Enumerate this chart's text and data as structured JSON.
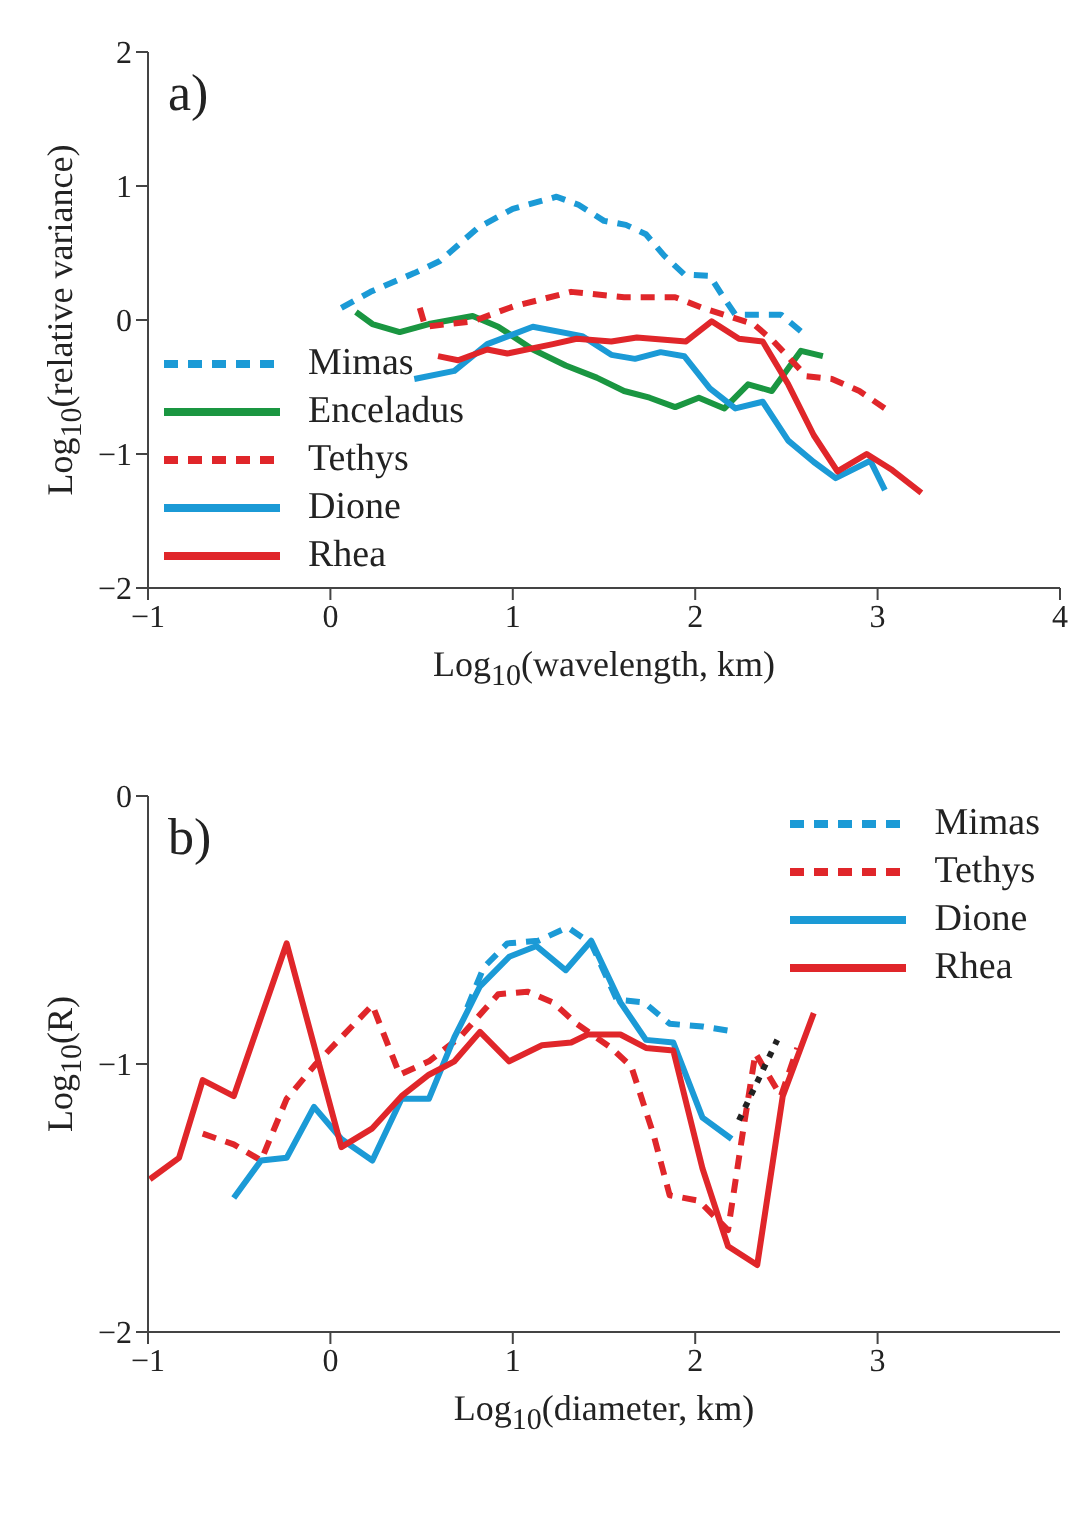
{
  "chart_data": [
    {
      "type": "line",
      "xlabel": "Log$_{10}$(wavelength, km)",
      "ylabel": "Log$_{10}$(relative variance)",
      "annotations": [
        "a)"
      ],
      "xlim": [
        -1,
        4
      ],
      "ylim": [
        -2,
        2
      ],
      "xticks": [
        -1,
        0,
        1,
        2,
        3,
        4
      ],
      "yticks": [
        -2,
        -1,
        0,
        1,
        2
      ],
      "legend": "bottom left",
      "series": [
        {
          "name": "Mimas",
          "color": "#1b9ad6",
          "line_style": "dashed",
          "x": [
            0.06,
            0.22,
            0.46,
            0.6,
            0.81,
            1.0,
            1.24,
            1.36,
            1.5,
            1.62,
            1.73,
            1.83,
            1.94,
            2.08,
            2.15,
            2.22,
            2.33,
            2.47,
            2.61
          ],
          "values": [
            0.09,
            0.21,
            0.35,
            0.44,
            0.69,
            0.83,
            0.92,
            0.86,
            0.74,
            0.71,
            0.64,
            0.48,
            0.34,
            0.33,
            0.18,
            0.04,
            0.04,
            0.04,
            -0.12
          ]
        },
        {
          "name": "Enceladus",
          "color": "#1a9641",
          "line_style": "solid",
          "x": [
            0.14,
            0.23,
            0.38,
            0.54,
            0.78,
            0.92,
            1.11,
            1.29,
            1.46,
            1.61,
            1.75,
            1.89,
            2.02,
            2.16,
            2.29,
            2.42,
            2.58,
            2.7
          ],
          "values": [
            0.06,
            -0.03,
            -0.09,
            -0.03,
            0.03,
            -0.05,
            -0.22,
            -0.34,
            -0.43,
            -0.53,
            -0.58,
            -0.65,
            -0.58,
            -0.66,
            -0.48,
            -0.53,
            -0.23,
            -0.27
          ]
        },
        {
          "name": "Tethys",
          "color": "#e0262a",
          "line_style": "dashed",
          "x": [
            0.49,
            0.52,
            0.78,
            1.0,
            1.32,
            1.61,
            1.89,
            2.04,
            2.18,
            2.32,
            2.43,
            2.61,
            2.75,
            2.9,
            3.04
          ],
          "values": [
            0.09,
            -0.05,
            -0.01,
            0.1,
            0.21,
            0.17,
            0.17,
            0.09,
            0.03,
            -0.03,
            -0.16,
            -0.42,
            -0.44,
            -0.53,
            -0.66
          ]
        },
        {
          "name": "Dione",
          "color": "#1b9ad6",
          "line_style": "solid",
          "x": [
            0.46,
            0.68,
            0.86,
            1.11,
            1.38,
            1.54,
            1.67,
            1.81,
            1.94,
            2.08,
            2.22,
            2.37,
            2.51,
            2.65,
            2.77,
            2.96,
            3.04
          ],
          "values": [
            -0.44,
            -0.38,
            -0.18,
            -0.05,
            -0.12,
            -0.26,
            -0.29,
            -0.24,
            -0.27,
            -0.51,
            -0.66,
            -0.61,
            -0.9,
            -1.06,
            -1.18,
            -1.05,
            -1.27
          ]
        },
        {
          "name": "Rhea",
          "color": "#e0262a",
          "line_style": "solid",
          "x": [
            0.59,
            0.7,
            0.86,
            0.97,
            1.22,
            1.35,
            1.54,
            1.68,
            1.95,
            2.09,
            2.24,
            2.37,
            2.51,
            2.65,
            2.78,
            2.94,
            3.08,
            3.24
          ],
          "values": [
            -0.27,
            -0.3,
            -0.22,
            -0.25,
            -0.18,
            -0.14,
            -0.16,
            -0.13,
            -0.16,
            -0.01,
            -0.14,
            -0.16,
            -0.48,
            -0.86,
            -1.13,
            -1.0,
            -1.12,
            -1.29
          ]
        }
      ]
    },
    {
      "type": "line",
      "xlabel": "Log$_{10}$(diameter, km)",
      "ylabel": "Log$_{10}$(R)",
      "annotations": [
        "b)"
      ],
      "xlim": [
        -1,
        4
      ],
      "ylim": [
        -2,
        0
      ],
      "xticks": [
        -1,
        0,
        1,
        2,
        3
      ],
      "yticks": [
        -2,
        -1,
        0
      ],
      "legend": "top right",
      "series": [
        {
          "name": "Mimas",
          "color": "#1b9ad6",
          "line_style": "dashed",
          "x": [
            0.75,
            0.84,
            0.97,
            1.14,
            1.3,
            1.43,
            1.57,
            1.72,
            1.86,
            2.04,
            2.22
          ],
          "values": [
            -0.79,
            -0.64,
            -0.55,
            -0.54,
            -0.49,
            -0.55,
            -0.76,
            -0.77,
            -0.85,
            -0.86,
            -0.88
          ]
        },
        {
          "name": "Tethys",
          "color": "#e0262a",
          "line_style": "dashed",
          "x": [
            -0.7,
            -0.53,
            -0.38,
            -0.24,
            -0.08,
            0.23,
            0.38,
            0.54,
            0.71,
            0.92,
            1.08,
            1.22,
            1.35,
            1.54,
            1.65,
            1.77,
            1.86,
            2.02,
            2.18,
            2.26,
            2.33,
            2.47,
            2.56
          ],
          "values": [
            -1.26,
            -1.3,
            -1.36,
            -1.13,
            -1.0,
            -0.78,
            -1.04,
            -0.99,
            -0.9,
            -0.74,
            -0.73,
            -0.77,
            -0.85,
            -0.94,
            -1.01,
            -1.26,
            -1.49,
            -1.51,
            -1.62,
            -1.26,
            -0.96,
            -1.12,
            -0.94
          ]
        },
        {
          "name": "Dione",
          "color": "#1b9ad6",
          "line_style": "solid",
          "x": [
            -0.53,
            -0.38,
            -0.24,
            -0.09,
            0.06,
            0.23,
            0.39,
            0.54,
            0.68,
            0.82,
            0.98,
            1.13,
            1.29,
            1.43,
            1.59,
            1.73,
            1.88,
            2.04,
            2.2
          ],
          "values": [
            -1.5,
            -1.36,
            -1.35,
            -1.16,
            -1.28,
            -1.36,
            -1.13,
            -1.13,
            -0.9,
            -0.71,
            -0.6,
            -0.56,
            -0.65,
            -0.54,
            -0.77,
            -0.91,
            -0.92,
            -1.2,
            -1.28
          ]
        },
        {
          "name": "Rhea",
          "color": "#e0262a",
          "line_style": "solid",
          "x": [
            -0.99,
            -0.83,
            -0.7,
            -0.53,
            -0.24,
            0.06,
            0.23,
            0.39,
            0.54,
            0.68,
            0.82,
            0.98,
            1.16,
            1.32,
            1.41,
            1.59,
            1.73,
            1.88,
            2.04,
            2.18,
            2.34,
            2.48,
            2.65
          ],
          "values": [
            -1.43,
            -1.35,
            -1.06,
            -1.12,
            -0.55,
            -1.31,
            -1.24,
            -1.12,
            -1.04,
            -0.99,
            -0.88,
            -0.99,
            -0.93,
            -0.92,
            -0.89,
            -0.89,
            -0.94,
            -0.95,
            -1.39,
            -1.68,
            -1.75,
            -1.12,
            -0.81
          ]
        },
        {
          "color": "#222222",
          "line_style": "dotted",
          "x": [
            2.24,
            2.45
          ],
          "values": [
            -1.21,
            -0.91
          ]
        }
      ]
    }
  ]
}
